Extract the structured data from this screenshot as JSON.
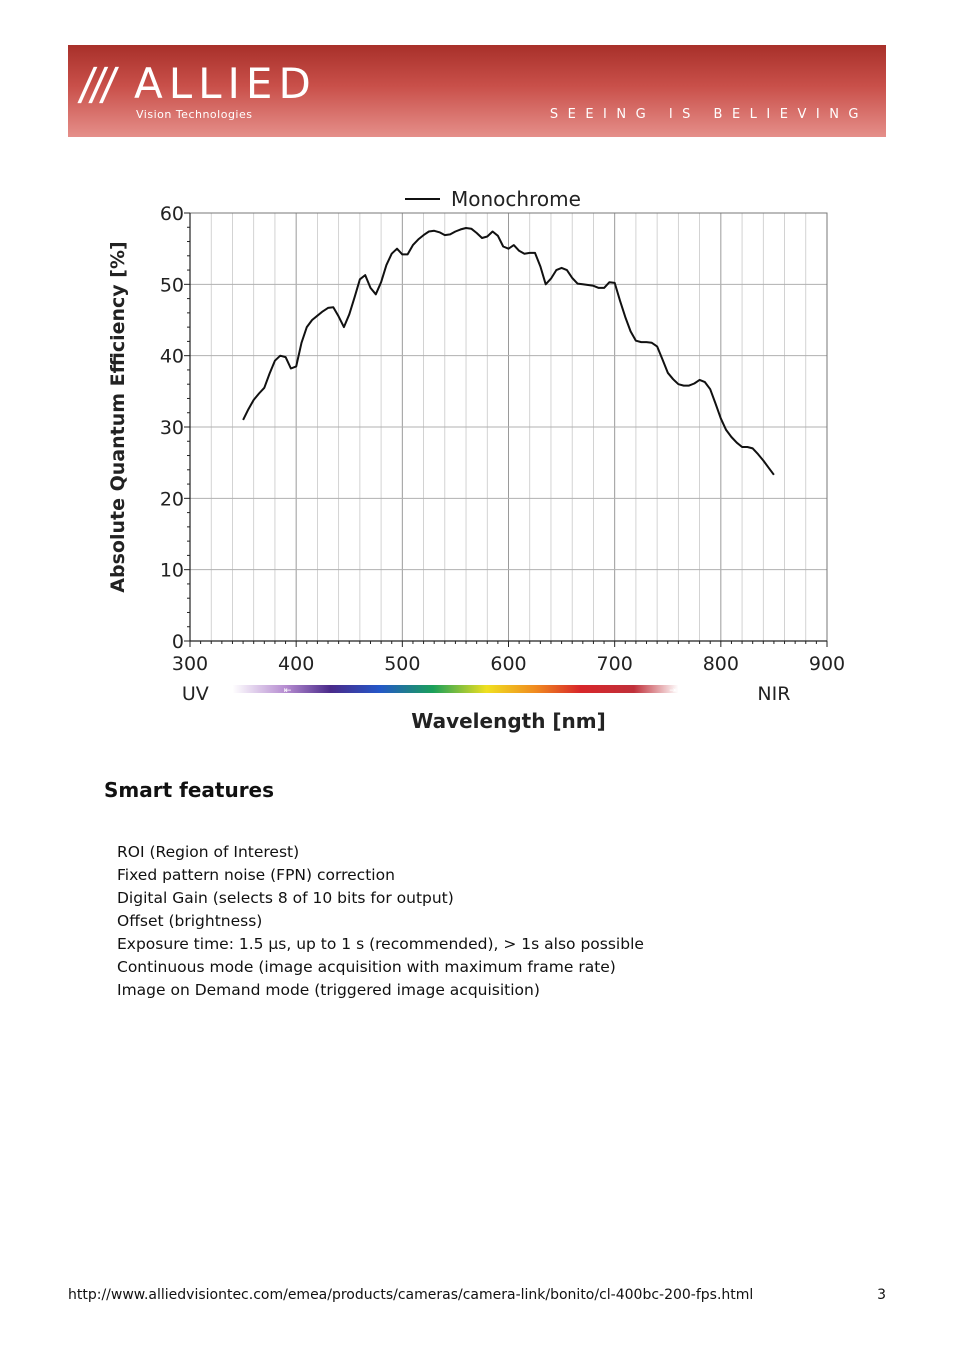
{
  "header": {
    "logo_slashes": "///",
    "logo_word": "ALLIED",
    "logo_sub": "Vision Technologies",
    "tagline": "SEEING IS BELIEVING",
    "gradient_top": "#a8302a",
    "gradient_bottom": "#e58f8a"
  },
  "chart_data": {
    "type": "line",
    "ylabel": "Absolute Quantum Efficiency [%]",
    "xlabel": "Wavelength [nm]",
    "xlim": [
      300,
      900
    ],
    "ylim": [
      0,
      60
    ],
    "x_ticks": [
      "300",
      "400",
      "500",
      "600",
      "700",
      "800",
      "900"
    ],
    "y_ticks": [
      "0",
      "10",
      "20",
      "30",
      "40",
      "50",
      "60"
    ],
    "grid": true,
    "legend_position": "top-center",
    "band_left": "UV",
    "band_right": "NIR",
    "series": [
      {
        "name": "Monochrome",
        "color": "#111111",
        "x": [
          350,
          355,
          360,
          365,
          370,
          375,
          380,
          385,
          390,
          395,
          400,
          405,
          410,
          415,
          420,
          425,
          430,
          435,
          440,
          445,
          450,
          455,
          460,
          465,
          470,
          475,
          480,
          485,
          490,
          495,
          500,
          505,
          510,
          515,
          520,
          525,
          530,
          535,
          540,
          545,
          550,
          555,
          560,
          565,
          570,
          575,
          580,
          585,
          590,
          595,
          600,
          605,
          610,
          615,
          620,
          625,
          630,
          635,
          640,
          645,
          650,
          655,
          660,
          665,
          670,
          675,
          680,
          685,
          690,
          695,
          700,
          705,
          710,
          715,
          720,
          725,
          730,
          735,
          740,
          745,
          750,
          755,
          760,
          765,
          770,
          775,
          780,
          785,
          790,
          795,
          800,
          805,
          810,
          815,
          820,
          825,
          830,
          835,
          840,
          845,
          850
        ],
        "y": [
          31,
          32.5,
          33.8,
          34.7,
          35.5,
          37.5,
          39.3,
          40,
          39.8,
          38.2,
          38.5,
          41.8,
          44,
          45,
          45.6,
          46.2,
          46.7,
          46.8,
          45.5,
          44,
          45.8,
          48.2,
          50.7,
          51.3,
          49.5,
          48.6,
          50.3,
          52.7,
          54.3,
          55,
          54.2,
          54.2,
          55.5,
          56.3,
          56.9,
          57.4,
          57.5,
          57.3,
          56.9,
          57,
          57.4,
          57.7,
          57.9,
          57.8,
          57.2,
          56.5,
          56.7,
          57.4,
          56.8,
          55.3,
          55,
          55.5,
          54.7,
          54.3,
          54.4,
          54.4,
          52.5,
          50,
          50.8,
          52,
          52.3,
          52,
          50.9,
          50.1,
          50,
          49.9,
          49.8,
          49.5,
          49.5,
          50.3,
          50.2,
          47.7,
          45.4,
          43.4,
          42.1,
          41.9,
          41.9,
          41.8,
          41.3,
          39.5,
          37.6,
          36.7,
          36,
          35.8,
          35.8,
          36.1,
          36.6,
          36.3,
          35.3,
          33.3,
          31.2,
          29.6,
          28.6,
          27.8,
          27.2,
          27.2,
          27,
          26.2,
          25.3,
          24.3,
          23.3
        ]
      }
    ]
  },
  "section": {
    "title": "Smart features",
    "items": [
      "ROI (Region of Interest)",
      "Fixed pattern noise (FPN) correction",
      "Digital Gain (selects 8 of 10 bits for output)",
      "Offset (brightness)",
      "Exposure time: 1.5 µs, up to 1 s (recommended), > 1s also possible",
      "Continuous mode (image acquisition with maximum frame rate)",
      "Image on Demand mode (triggered image acquisition)"
    ]
  },
  "footer": {
    "url": "http://www.alliedvisiontec.com/emea/products/cameras/camera-link/bonito/cl-400bc-200-fps.html",
    "page": "3"
  }
}
